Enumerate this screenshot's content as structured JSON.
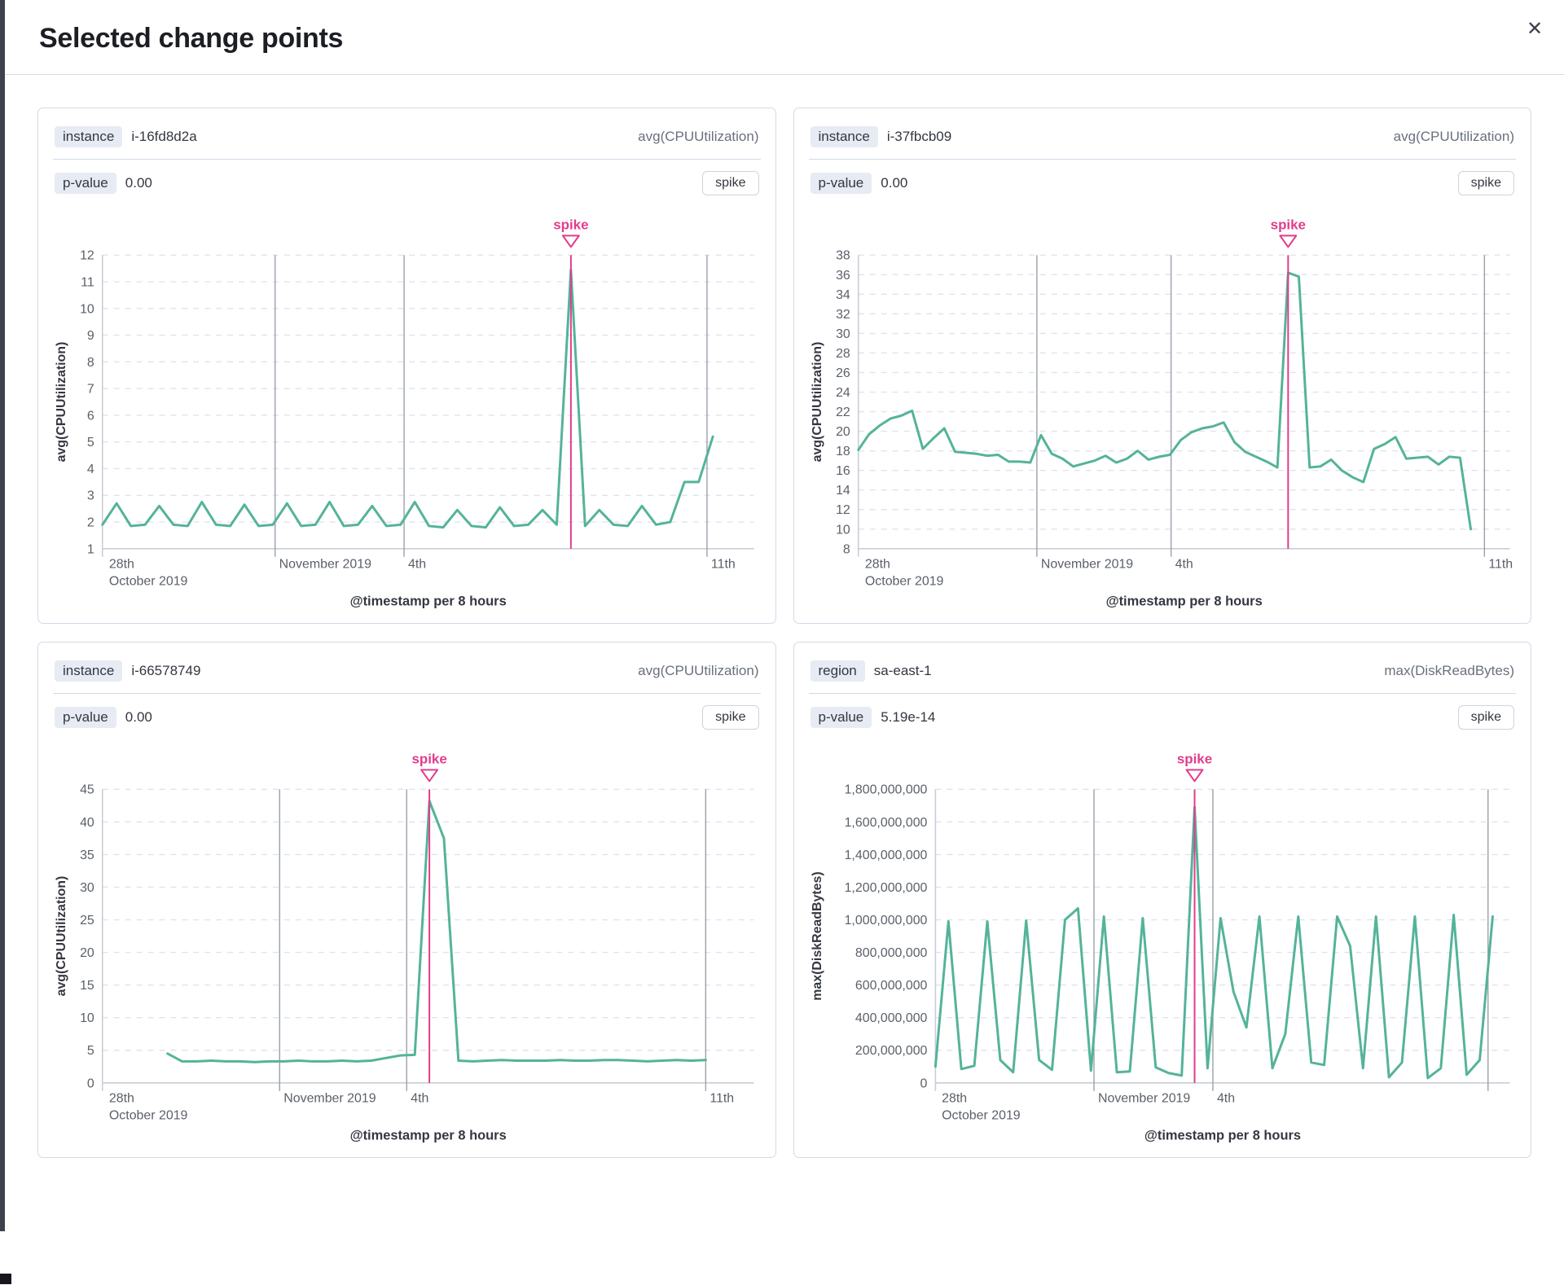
{
  "modal": {
    "title": "Selected change points",
    "close_glyph": "✕"
  },
  "colors": {
    "series": "#54b399",
    "annotation": "#e23c8b",
    "month_line": "#9aa0aa",
    "grid_dash": "#dfe3ec",
    "axis_line": "#c9cdd6",
    "tick_text": "#5b6069",
    "bold_text": "#343741",
    "badge_bg": "#e7ebf3",
    "panel_border": "#d3dae6"
  },
  "panels": [
    {
      "key_label": "instance",
      "key_value": "i-16fd8d2a",
      "metric": "avg(CPUUtilization)",
      "p_label": "p-value",
      "p_value": "0.00",
      "change_type": "spike"
    },
    {
      "key_label": "instance",
      "key_value": "i-37fbcb09",
      "metric": "avg(CPUUtilization)",
      "p_label": "p-value",
      "p_value": "0.00",
      "change_type": "spike"
    },
    {
      "key_label": "instance",
      "key_value": "i-66578749",
      "metric": "avg(CPUUtilization)",
      "p_label": "p-value",
      "p_value": "0.00",
      "change_type": "spike"
    },
    {
      "key_label": "region",
      "key_value": "sa-east-1",
      "metric": "max(DiskReadBytes)",
      "p_label": "p-value",
      "p_value": "5.19e-14",
      "change_type": "spike"
    }
  ],
  "chart_data": [
    {
      "type": "line",
      "series_name": "avg(CPUUtilization)",
      "ylabel": "avg(CPUUtilization)",
      "xlabel": "@timestamp per 8 hours",
      "ylim": [
        1,
        12
      ],
      "y_ticks": [
        1,
        2,
        3,
        4,
        5,
        6,
        7,
        8,
        9,
        10,
        11,
        12
      ],
      "y_tick_format": "plain",
      "annotation": "spike",
      "spike_index": 33,
      "series_start_frac": 0.0,
      "series_end_frac": 0.937,
      "x_lines": [
        0.265,
        0.463,
        0.928
      ],
      "x_ticks": [
        {
          "frac": 0.004,
          "lines": [
            "28th",
            "October 2019"
          ]
        },
        {
          "frac": 0.265,
          "lines": [
            "November 2019"
          ]
        },
        {
          "frac": 0.463,
          "lines": [
            "4th"
          ]
        },
        {
          "frac": 0.928,
          "lines": [
            "11th"
          ]
        }
      ],
      "values": [
        1.9,
        2.7,
        1.85,
        1.9,
        2.6,
        1.9,
        1.85,
        2.75,
        1.9,
        1.85,
        2.65,
        1.85,
        1.9,
        2.7,
        1.85,
        1.9,
        2.75,
        1.85,
        1.9,
        2.6,
        1.85,
        1.9,
        2.75,
        1.85,
        1.8,
        2.45,
        1.85,
        1.8,
        2.55,
        1.85,
        1.9,
        2.45,
        1.9,
        11.45,
        1.85,
        2.45,
        1.9,
        1.85,
        2.6,
        1.9,
        2.0,
        3.5,
        3.5,
        5.2
      ]
    },
    {
      "type": "line",
      "series_name": "avg(CPUUtilization)",
      "ylabel": "avg(CPUUtilization)",
      "xlabel": "@timestamp per 8 hours",
      "ylim": [
        8,
        38
      ],
      "y_ticks": [
        8,
        10,
        12,
        14,
        16,
        18,
        20,
        22,
        24,
        26,
        28,
        30,
        32,
        34,
        36,
        38
      ],
      "y_tick_format": "plain",
      "annotation": "spike",
      "spike_index": 40,
      "series_start_frac": 0.0,
      "series_end_frac": 0.94,
      "x_lines": [
        0.274,
        0.48,
        0.961
      ],
      "x_ticks": [
        {
          "frac": 0.004,
          "lines": [
            "28th",
            "October 2019"
          ]
        },
        {
          "frac": 0.274,
          "lines": [
            "November 2019"
          ]
        },
        {
          "frac": 0.48,
          "lines": [
            "4th"
          ]
        },
        {
          "frac": 0.961,
          "lines": [
            "11th"
          ]
        }
      ],
      "values": [
        18.1,
        19.7,
        20.6,
        21.3,
        21.6,
        22.1,
        18.2,
        19.3,
        20.3,
        17.9,
        17.8,
        17.7,
        17.5,
        17.6,
        16.9,
        16.9,
        16.8,
        19.6,
        17.7,
        17.2,
        16.4,
        16.7,
        17.0,
        17.5,
        16.8,
        17.2,
        18.0,
        17.1,
        17.4,
        17.6,
        19.1,
        19.9,
        20.3,
        20.5,
        20.9,
        18.9,
        17.9,
        17.4,
        16.9,
        16.3,
        36.2,
        35.8,
        16.3,
        16.4,
        17.1,
        16.0,
        15.3,
        14.8,
        18.2,
        18.7,
        19.4,
        17.2,
        17.3,
        17.4,
        16.6,
        17.4,
        17.3,
        10.0
      ]
    },
    {
      "type": "line",
      "series_name": "avg(CPUUtilization)",
      "ylabel": "avg(CPUUtilization)",
      "xlabel": "@timestamp per 8 hours",
      "ylim": [
        0,
        45
      ],
      "y_ticks": [
        0,
        5,
        10,
        15,
        20,
        25,
        30,
        35,
        40,
        45
      ],
      "y_tick_format": "plain",
      "annotation": "spike",
      "spike_index": 18,
      "series_start_frac": 0.1,
      "series_end_frac": 0.926,
      "x_lines": [
        0.272,
        0.467,
        0.926
      ],
      "x_ticks": [
        {
          "frac": 0.004,
          "lines": [
            "28th",
            "October 2019"
          ]
        },
        {
          "frac": 0.272,
          "lines": [
            "November 2019"
          ]
        },
        {
          "frac": 0.467,
          "lines": [
            "4th"
          ]
        },
        {
          "frac": 0.926,
          "lines": [
            "11th"
          ]
        }
      ],
      "values": [
        4.5,
        3.3,
        3.3,
        3.4,
        3.3,
        3.3,
        3.2,
        3.3,
        3.3,
        3.4,
        3.3,
        3.3,
        3.4,
        3.3,
        3.4,
        3.8,
        4.2,
        4.3,
        43.2,
        37.5,
        3.4,
        3.3,
        3.4,
        3.5,
        3.4,
        3.4,
        3.4,
        3.5,
        3.4,
        3.4,
        3.5,
        3.5,
        3.4,
        3.3,
        3.4,
        3.5,
        3.4,
        3.5
      ]
    },
    {
      "type": "line",
      "series_name": "max(DiskReadBytes)",
      "ylabel": "max(DiskReadBytes)",
      "xlabel": "@timestamp per 8 hours",
      "ylim": [
        0,
        1800000000
      ],
      "y_ticks": [
        0,
        200000000,
        400000000,
        600000000,
        800000000,
        1000000000,
        1200000000,
        1400000000,
        1600000000,
        1800000000
      ],
      "y_tick_format": "thousands",
      "annotation": "spike",
      "spike_index": 20,
      "series_start_frac": 0.0,
      "series_end_frac": 0.97,
      "x_lines": [
        0.276,
        0.483,
        0.962
      ],
      "x_ticks": [
        {
          "frac": 0.004,
          "lines": [
            "28th",
            "October 2019"
          ]
        },
        {
          "frac": 0.276,
          "lines": [
            "November 2019"
          ]
        },
        {
          "frac": 0.483,
          "lines": [
            "4th"
          ]
        }
      ],
      "values": [
        100000000,
        990000000,
        85000000,
        105000000,
        990000000,
        140000000,
        65000000,
        995000000,
        140000000,
        80000000,
        1000000000,
        1070000000,
        75000000,
        1020000000,
        65000000,
        70000000,
        1010000000,
        95000000,
        60000000,
        45000000,
        1690000000,
        90000000,
        1010000000,
        560000000,
        340000000,
        1020000000,
        90000000,
        300000000,
        1020000000,
        125000000,
        110000000,
        1020000000,
        840000000,
        90000000,
        1020000000,
        35000000,
        125000000,
        1020000000,
        30000000,
        90000000,
        1030000000,
        50000000,
        140000000,
        1020000000
      ]
    }
  ]
}
